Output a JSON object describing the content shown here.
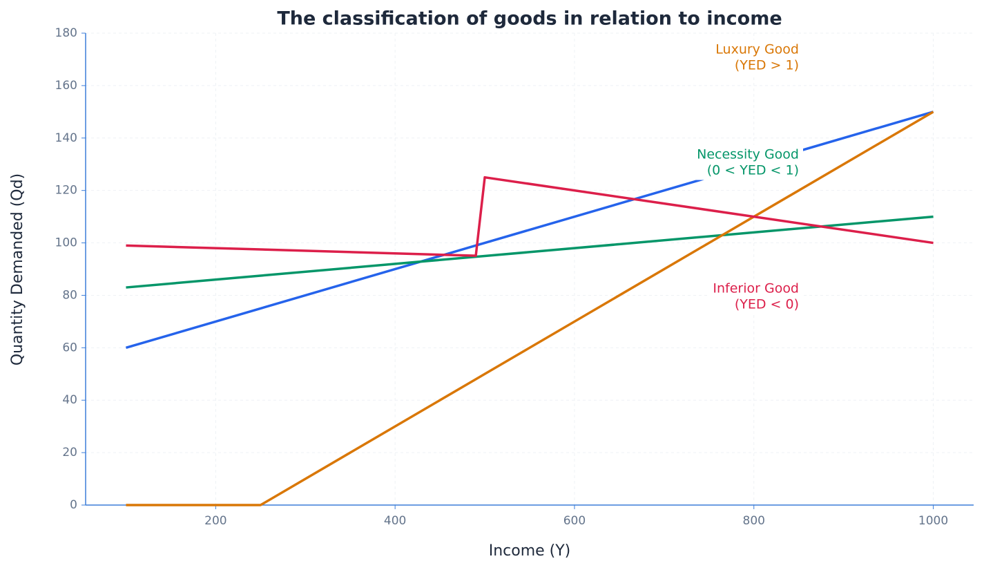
{
  "chart_data": {
    "type": "line",
    "title": "The classification of goods in relation to income",
    "x_label": "Income (Y)",
    "y_label": "Quantity Demanded (Qd)",
    "x": [
      100,
      250,
      490,
      500,
      1000
    ],
    "series": [
      {
        "color": "#2563eb",
        "values": [
          60,
          75,
          99,
          100,
          150
        ]
      },
      {
        "color": "#059669",
        "values": [
          83,
          87.5,
          94.7,
          95,
          110
        ]
      },
      {
        "color": "#d97706",
        "values": [
          0,
          0,
          48,
          50,
          150
        ]
      },
      {
        "color": "#dc1f4a",
        "values": [
          99,
          97.5,
          95.1,
          125,
          100
        ]
      }
    ],
    "annotations": [
      {
        "text": [
          "Luxury Good",
          "(YED > 1)"
        ],
        "color": "#d97706"
      },
      {
        "text": [
          "Necessity Good",
          "(0 < YED < 1)"
        ],
        "color": "#059669"
      },
      {
        "text": [
          "Inferior Good",
          "(YED < 0)"
        ],
        "color": "#dc1f4a"
      }
    ],
    "xlim": [
      55,
      1045
    ],
    "xticks": [
      200,
      400,
      600,
      800,
      1000
    ],
    "ylim": [
      0,
      180
    ],
    "yticks": [
      0,
      20,
      40,
      60,
      80,
      100,
      120,
      140,
      160,
      180
    ],
    "grid": true
  }
}
